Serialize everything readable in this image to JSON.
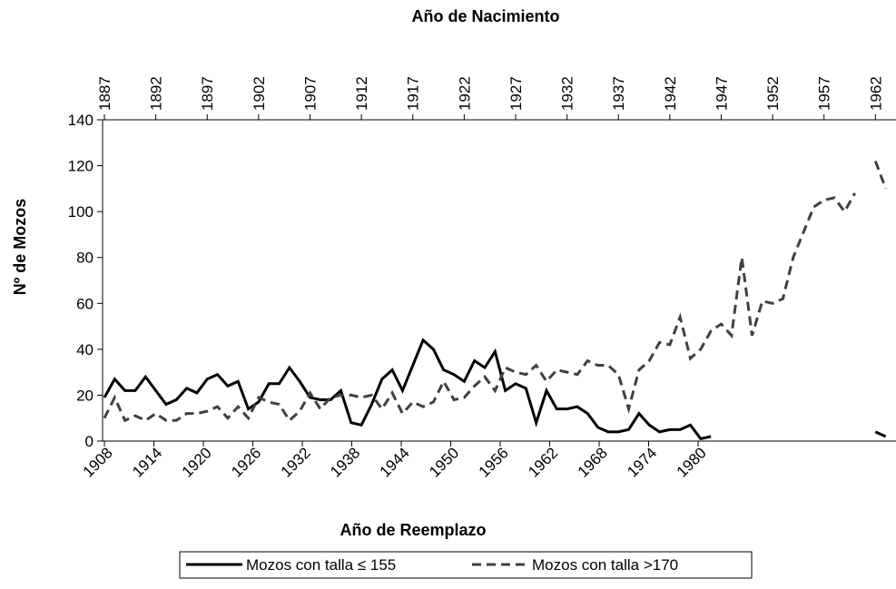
{
  "chart_data": {
    "type": "line",
    "title": "Año de Nacimiento",
    "xlabel": "Año de Reemplazo",
    "ylabel": "Nº de Mozos",
    "xlim": [
      1908,
      2004
    ],
    "xticks": [
      1908,
      1914,
      1920,
      1926,
      1932,
      1938,
      1944,
      1950,
      1956,
      1962,
      1968,
      1974,
      1980
    ],
    "x2lim": [
      1887,
      1964
    ],
    "x2ticks": [
      1887,
      1892,
      1897,
      1902,
      1907,
      1912,
      1917,
      1922,
      1927,
      1932,
      1937,
      1942,
      1947,
      1952,
      1957,
      1962
    ],
    "ylim": [
      0,
      140
    ],
    "yticks": [
      0,
      20,
      40,
      60,
      80,
      100,
      120,
      140
    ],
    "grid": false,
    "x": [
      1887,
      1888,
      1889,
      1890,
      1891,
      1892,
      1893,
      1894,
      1895,
      1896,
      1897,
      1898,
      1899,
      1900,
      1901,
      1902,
      1903,
      1904,
      1905,
      1906,
      1907,
      1908,
      1909,
      1910,
      1911,
      1912,
      1913,
      1914,
      1915,
      1916,
      1917,
      1918,
      1919,
      1920,
      1921,
      1922,
      1923,
      1924,
      1925,
      1926,
      1927,
      1928,
      1929,
      1930,
      1931,
      1932,
      1933,
      1934,
      1935,
      1936,
      1937,
      1938,
      1939,
      1940,
      1941,
      1942,
      1943,
      1944,
      1945,
      1946,
      1947,
      1948,
      1949,
      1950,
      1951,
      1952,
      1953,
      1954,
      1955,
      1956,
      1957,
      1958,
      1959,
      1960,
      1961,
      1962,
      1963
    ],
    "series": [
      {
        "name": "Mozos con talla ≤ 155",
        "color": "#000000",
        "dash": false,
        "values": [
          19,
          27,
          22,
          22,
          28,
          22,
          16,
          18,
          23,
          21,
          27,
          29,
          24,
          26,
          14,
          17,
          25,
          25,
          32,
          26,
          19,
          18,
          18,
          22,
          8,
          7,
          16,
          27,
          31,
          22,
          33,
          44,
          40,
          31,
          29,
          26,
          35,
          32,
          39,
          22,
          25,
          23,
          8,
          22,
          14,
          14,
          15,
          12,
          6,
          4,
          4,
          5,
          12,
          7,
          4,
          5,
          5,
          7,
          1,
          2,
          null,
          null,
          null,
          null,
          null,
          null,
          null,
          null,
          null,
          null,
          null,
          null,
          null,
          null,
          null,
          4,
          2
        ]
      },
      {
        "name": "Mozos con talla >170",
        "color": "#404040",
        "dash": true,
        "values": [
          10,
          19,
          9,
          11,
          9,
          12,
          9,
          9,
          12,
          12,
          13,
          15,
          10,
          15,
          10,
          19,
          17,
          16,
          9,
          13,
          21,
          14,
          19,
          20,
          20,
          19,
          20,
          14,
          21,
          12,
          17,
          15,
          17,
          26,
          18,
          19,
          24,
          28,
          22,
          32,
          30,
          29,
          33,
          26,
          31,
          30,
          29,
          35,
          33,
          33,
          29,
          14,
          31,
          35,
          43,
          42,
          54,
          36,
          40,
          48,
          51,
          46,
          80,
          46,
          61,
          60,
          62,
          80,
          91,
          102,
          105,
          106,
          100,
          108,
          null,
          122,
          110
        ]
      }
    ]
  }
}
